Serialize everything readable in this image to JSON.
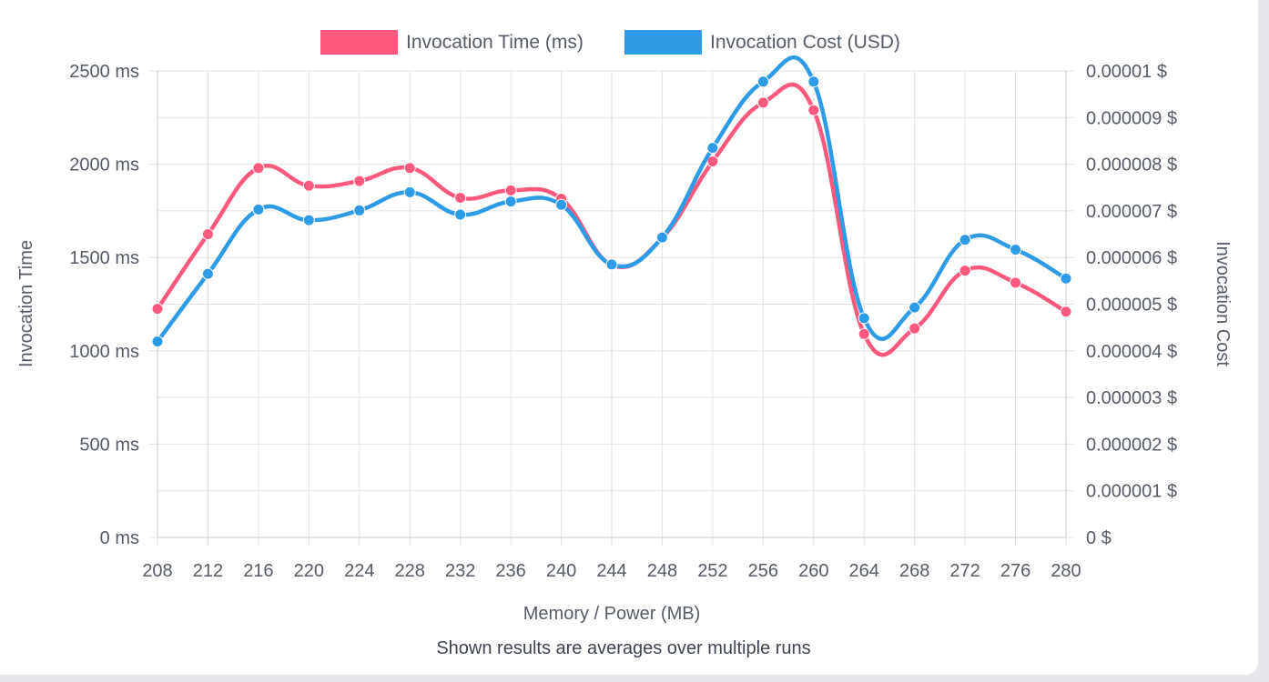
{
  "chart_data": {
    "type": "line",
    "x": [
      "208",
      "212",
      "216",
      "220",
      "224",
      "228",
      "232",
      "236",
      "240",
      "244",
      "248",
      "252",
      "256",
      "260",
      "264",
      "268",
      "272",
      "276",
      "280"
    ],
    "xlabel": "Memory / Power (MB)",
    "ylabel_left": "Invocation Time",
    "ylabel_right": "Invocation Cost",
    "ylim_left": [
      0,
      2500
    ],
    "ylim_right": [
      0,
      1e-05
    ],
    "yticks_left": [
      "0 ms",
      "500 ms",
      "1000 ms",
      "1500 ms",
      "2000 ms",
      "2500 ms"
    ],
    "yticks_right": [
      "0 $",
      "0.000001 $",
      "0.000002 $",
      "0.000003 $",
      "0.000004 $",
      "0.000005 $",
      "0.000006 $",
      "0.000007 $",
      "0.000008 $",
      "0.000009 $",
      "0.00001 $"
    ],
    "grid": true,
    "legend_position": "top-center",
    "series": [
      {
        "name": "Invocation Time (ms)",
        "color": "#ff5a7e",
        "axis": "left",
        "values": [
          1225,
          1625,
          1980,
          1885,
          1910,
          1980,
          1820,
          1860,
          1815,
          1460,
          1605,
          2015,
          2330,
          2290,
          1090,
          1120,
          1430,
          1365,
          1210
        ]
      },
      {
        "name": "Invocation Cost (USD)",
        "color": "#2d9be6",
        "axis": "right",
        "values": [
          4.2e-06,
          5.65e-06,
          7.03e-06,
          6.8e-06,
          7.01e-06,
          7.4e-06,
          6.92e-06,
          7.2e-06,
          7.13e-06,
          5.85e-06,
          6.43e-06,
          8.35e-06,
          9.77e-06,
          9.77e-06,
          4.7e-06,
          4.93e-06,
          6.38e-06,
          6.17e-06,
          5.55e-06
        ]
      }
    ],
    "note": "Shown results are averages over multiple runs"
  }
}
